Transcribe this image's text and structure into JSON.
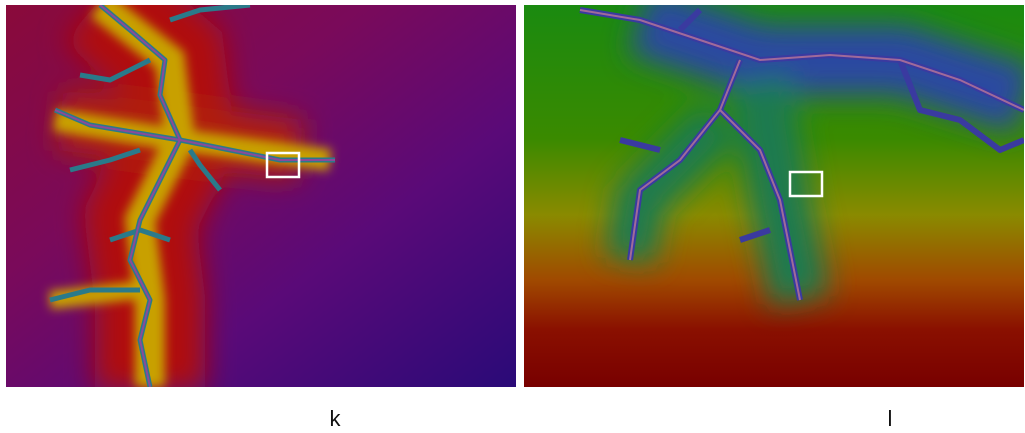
{
  "panels": [
    {
      "label": "k"
    },
    {
      "label": "l"
    }
  ]
}
